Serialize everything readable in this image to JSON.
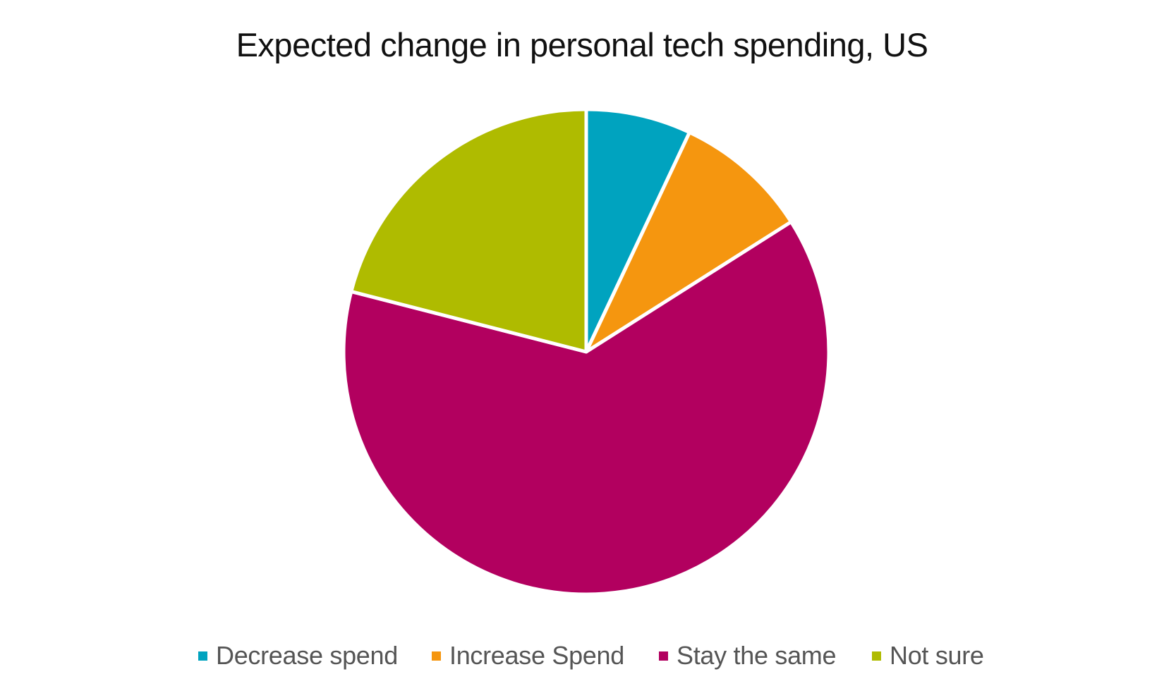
{
  "chart_data": {
    "type": "pie",
    "title": "Expected change in personal tech spending, US",
    "categories": [
      "Decrease spend",
      "Increase Spend",
      "Stay the same",
      "Not sure"
    ],
    "values": [
      7,
      9,
      63,
      21
    ],
    "colors": [
      "#00A3BF",
      "#F5960F",
      "#B2005F",
      "#AFBB00"
    ],
    "start_angle_deg": 0,
    "direction": "clockwise",
    "slice_border_color": "#FFFFFF",
    "legend_position": "bottom"
  }
}
